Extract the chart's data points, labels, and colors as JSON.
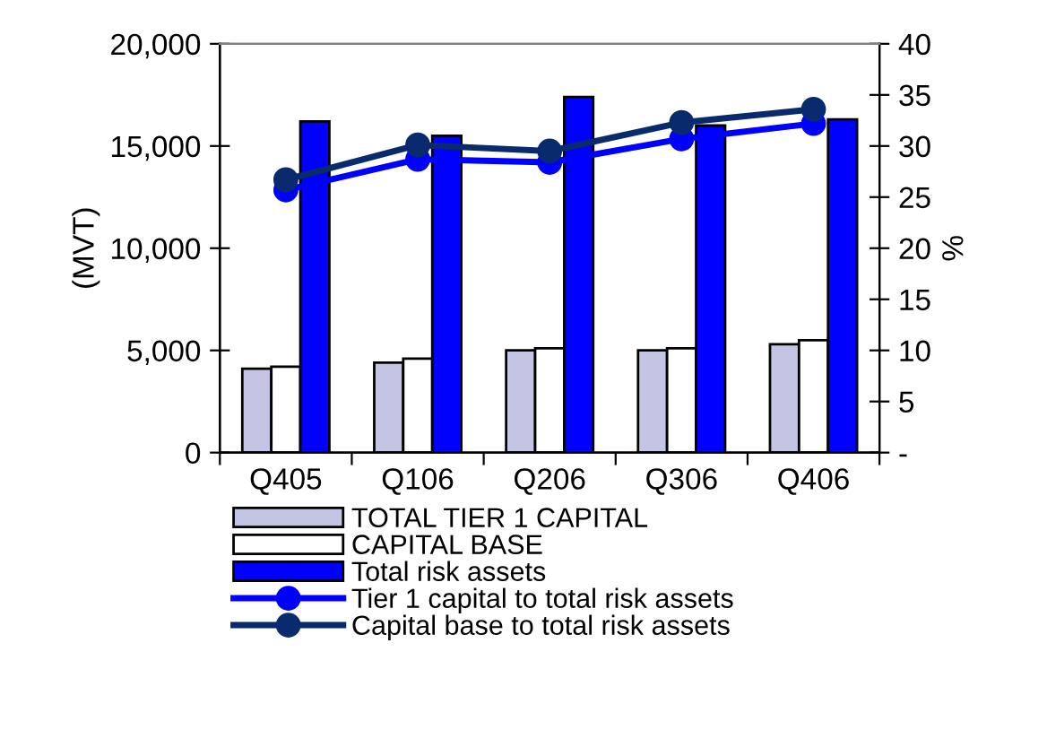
{
  "chart_data": {
    "type": "bar",
    "categories": [
      "Q405",
      "Q106",
      "Q206",
      "Q306",
      "Q406"
    ],
    "ylabel": "(MVT)",
    "y2label": "%",
    "ylim": [
      0,
      20000
    ],
    "yticks": [
      {
        "value": 0,
        "label": "0"
      },
      {
        "value": 5000,
        "label": "5,000"
      },
      {
        "value": 10000,
        "label": "10,000"
      },
      {
        "value": 15000,
        "label": "15,000"
      },
      {
        "value": 20000,
        "label": "20,000"
      }
    ],
    "y2lim": [
      0,
      40
    ],
    "y2ticks": [
      {
        "value": 0,
        "label": "-"
      },
      5,
      10,
      15,
      20,
      25,
      30,
      35,
      40
    ],
    "series": [
      {
        "name": "TOTAL TIER 1 CAPITAL",
        "color": "#c4c4e4",
        "values": [
          4100,
          4400,
          5000,
          5000,
          5300
        ]
      },
      {
        "name": "CAPITAL BASE",
        "color": "#ffffff",
        "values": [
          4200,
          4600,
          5100,
          5100,
          5500
        ]
      },
      {
        "name": "Total risk assets",
        "color": "#0000ff",
        "values": [
          16200,
          15500,
          17400,
          16000,
          16300
        ]
      },
      {
        "name": "Tier 1 capital to total risk assets",
        "type": "line",
        "axis": "y2",
        "color": "#0000ff",
        "values": [
          25.7,
          28.7,
          28.4,
          30.7,
          32.2
        ]
      },
      {
        "name": "Capital base to total risk assets",
        "type": "line",
        "axis": "y2",
        "color": "#0a2a6e",
        "values": [
          26.7,
          30.1,
          29.5,
          32.3,
          33.6
        ]
      }
    ],
    "marker": "circle",
    "line_style": "solid",
    "grid": false,
    "legend": "bottom"
  }
}
